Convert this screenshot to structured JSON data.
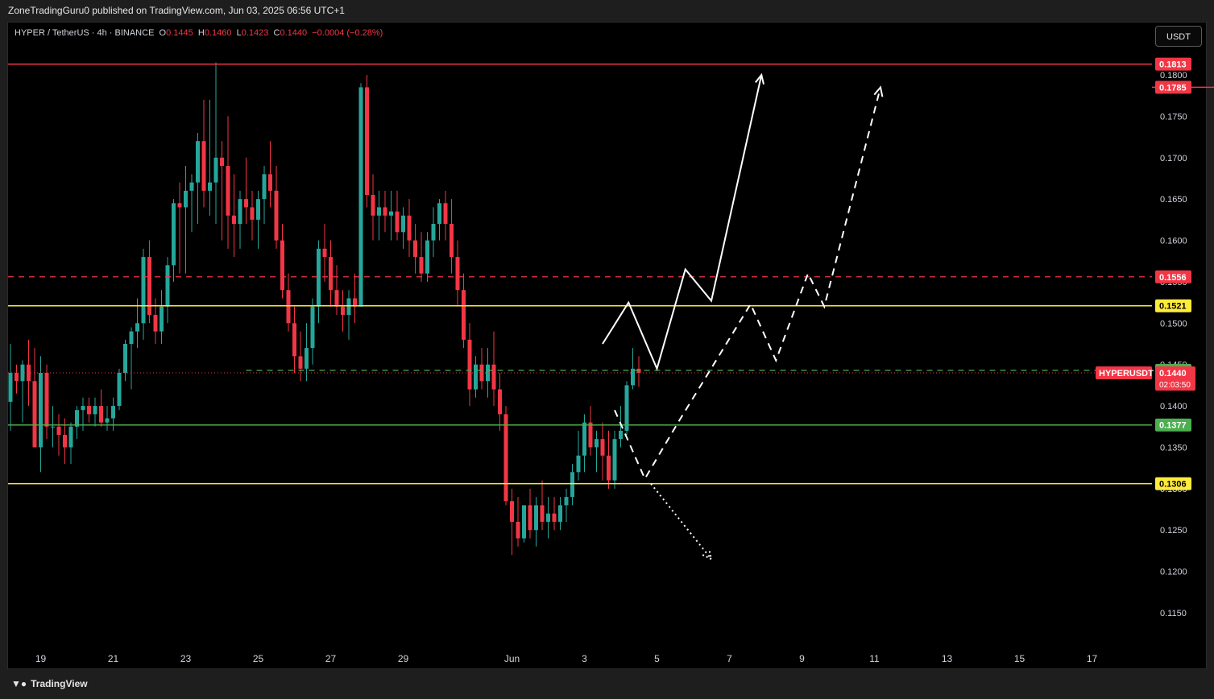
{
  "header": {
    "publish_text": "ZoneTradingGuru0 published on TradingView.com, Jun 03, 2025 06:56 UTC+1"
  },
  "legend": {
    "symbol": "HYPER / TetherUS · 4h · BINANCE",
    "o_label": "O",
    "o_value": "0.1445",
    "h_label": "H",
    "h_value": "0.1460",
    "l_label": "L",
    "l_value": "0.1423",
    "c_label": "C",
    "c_value": "0.1440",
    "change": "−0.0004 (−0.28%)"
  },
  "currency_button": "USDT",
  "footer": {
    "brand": "TradingView"
  },
  "colors": {
    "up": "#26a69a",
    "down": "#f23645",
    "yellow": "#ffeb3b",
    "green_line": "#4caf50",
    "white": "#ffffff",
    "axis_text": "#d1d4dc"
  },
  "chart_data": {
    "type": "candlestick",
    "symbol": "HYPERUSDT",
    "timeframe": "4h",
    "ylim": [
      0.1115,
      0.1855
    ],
    "y_ticks": [
      0.115,
      0.12,
      0.125,
      0.13,
      0.135,
      0.14,
      0.145,
      0.15,
      0.155,
      0.16,
      0.165,
      0.17,
      0.175,
      0.18
    ],
    "y_tick_labels": [
      "0.1150",
      "0.1200",
      "0.1250",
      "0.1300",
      "0.1350",
      "0.1400",
      "0.1450",
      "0.1500",
      "0.1550",
      "0.1600",
      "0.1650",
      "0.1700",
      "0.1750",
      "0.1800"
    ],
    "x_tick_labels": [
      "19",
      "21",
      "23",
      "25",
      "27",
      "29",
      "Jun",
      "3",
      "5",
      "7",
      "9",
      "11",
      "13",
      "15",
      "17"
    ],
    "x_tick_bar_index": [
      5,
      17,
      29,
      41,
      53,
      65,
      83,
      95,
      107,
      119,
      131,
      143,
      155,
      167,
      179
    ],
    "candles": [
      {
        "o": 0.1405,
        "h": 0.1475,
        "l": 0.137,
        "c": 0.144
      },
      {
        "o": 0.144,
        "h": 0.145,
        "l": 0.1415,
        "c": 0.143
      },
      {
        "o": 0.143,
        "h": 0.1455,
        "l": 0.138,
        "c": 0.145
      },
      {
        "o": 0.145,
        "h": 0.148,
        "l": 0.14,
        "c": 0.143
      },
      {
        "o": 0.143,
        "h": 0.147,
        "l": 0.135,
        "c": 0.135
      },
      {
        "o": 0.135,
        "h": 0.146,
        "l": 0.132,
        "c": 0.144
      },
      {
        "o": 0.144,
        "h": 0.145,
        "l": 0.136,
        "c": 0.1375
      },
      {
        "o": 0.1375,
        "h": 0.14,
        "l": 0.135,
        "c": 0.1375
      },
      {
        "o": 0.1375,
        "h": 0.139,
        "l": 0.134,
        "c": 0.1365
      },
      {
        "o": 0.1365,
        "h": 0.1385,
        "l": 0.133,
        "c": 0.135
      },
      {
        "o": 0.135,
        "h": 0.138,
        "l": 0.133,
        "c": 0.1375
      },
      {
        "o": 0.1375,
        "h": 0.14,
        "l": 0.136,
        "c": 0.1395
      },
      {
        "o": 0.1395,
        "h": 0.141,
        "l": 0.137,
        "c": 0.14
      },
      {
        "o": 0.14,
        "h": 0.141,
        "l": 0.138,
        "c": 0.139
      },
      {
        "o": 0.139,
        "h": 0.141,
        "l": 0.1375,
        "c": 0.14
      },
      {
        "o": 0.14,
        "h": 0.142,
        "l": 0.1375,
        "c": 0.138
      },
      {
        "o": 0.138,
        "h": 0.14,
        "l": 0.137,
        "c": 0.1385
      },
      {
        "o": 0.1385,
        "h": 0.141,
        "l": 0.137,
        "c": 0.14
      },
      {
        "o": 0.14,
        "h": 0.1445,
        "l": 0.1395,
        "c": 0.144
      },
      {
        "o": 0.144,
        "h": 0.148,
        "l": 0.143,
        "c": 0.1475
      },
      {
        "o": 0.1475,
        "h": 0.1495,
        "l": 0.142,
        "c": 0.149
      },
      {
        "o": 0.149,
        "h": 0.153,
        "l": 0.147,
        "c": 0.15
      },
      {
        "o": 0.15,
        "h": 0.159,
        "l": 0.148,
        "c": 0.158
      },
      {
        "o": 0.158,
        "h": 0.16,
        "l": 0.15,
        "c": 0.151
      },
      {
        "o": 0.151,
        "h": 0.153,
        "l": 0.1475,
        "c": 0.149
      },
      {
        "o": 0.149,
        "h": 0.154,
        "l": 0.1475,
        "c": 0.152
      },
      {
        "o": 0.152,
        "h": 0.158,
        "l": 0.15,
        "c": 0.157
      },
      {
        "o": 0.157,
        "h": 0.165,
        "l": 0.155,
        "c": 0.1645
      },
      {
        "o": 0.1645,
        "h": 0.167,
        "l": 0.156,
        "c": 0.164
      },
      {
        "o": 0.164,
        "h": 0.169,
        "l": 0.156,
        "c": 0.166
      },
      {
        "o": 0.166,
        "h": 0.168,
        "l": 0.161,
        "c": 0.167
      },
      {
        "o": 0.167,
        "h": 0.173,
        "l": 0.162,
        "c": 0.172
      },
      {
        "o": 0.172,
        "h": 0.177,
        "l": 0.164,
        "c": 0.166
      },
      {
        "o": 0.166,
        "h": 0.177,
        "l": 0.163,
        "c": 0.167
      },
      {
        "o": 0.167,
        "h": 0.1815,
        "l": 0.162,
        "c": 0.17
      },
      {
        "o": 0.17,
        "h": 0.172,
        "l": 0.16,
        "c": 0.169
      },
      {
        "o": 0.169,
        "h": 0.175,
        "l": 0.159,
        "c": 0.163
      },
      {
        "o": 0.163,
        "h": 0.168,
        "l": 0.158,
        "c": 0.162
      },
      {
        "o": 0.162,
        "h": 0.166,
        "l": 0.159,
        "c": 0.165
      },
      {
        "o": 0.165,
        "h": 0.17,
        "l": 0.162,
        "c": 0.164
      },
      {
        "o": 0.164,
        "h": 0.166,
        "l": 0.16,
        "c": 0.1625
      },
      {
        "o": 0.1625,
        "h": 0.166,
        "l": 0.159,
        "c": 0.165
      },
      {
        "o": 0.165,
        "h": 0.169,
        "l": 0.162,
        "c": 0.168
      },
      {
        "o": 0.168,
        "h": 0.172,
        "l": 0.164,
        "c": 0.166
      },
      {
        "o": 0.166,
        "h": 0.169,
        "l": 0.159,
        "c": 0.16
      },
      {
        "o": 0.16,
        "h": 0.162,
        "l": 0.153,
        "c": 0.154
      },
      {
        "o": 0.154,
        "h": 0.156,
        "l": 0.149,
        "c": 0.15
      },
      {
        "o": 0.15,
        "h": 0.152,
        "l": 0.144,
        "c": 0.146
      },
      {
        "o": 0.146,
        "h": 0.149,
        "l": 0.143,
        "c": 0.1445
      },
      {
        "o": 0.1445,
        "h": 0.15,
        "l": 0.143,
        "c": 0.147
      },
      {
        "o": 0.147,
        "h": 0.153,
        "l": 0.145,
        "c": 0.152
      },
      {
        "o": 0.152,
        "h": 0.16,
        "l": 0.15,
        "c": 0.159
      },
      {
        "o": 0.159,
        "h": 0.162,
        "l": 0.155,
        "c": 0.158
      },
      {
        "o": 0.158,
        "h": 0.16,
        "l": 0.152,
        "c": 0.154
      },
      {
        "o": 0.154,
        "h": 0.157,
        "l": 0.151,
        "c": 0.152
      },
      {
        "o": 0.152,
        "h": 0.154,
        "l": 0.149,
        "c": 0.151
      },
      {
        "o": 0.151,
        "h": 0.154,
        "l": 0.148,
        "c": 0.153
      },
      {
        "o": 0.153,
        "h": 0.156,
        "l": 0.15,
        "c": 0.152
      },
      {
        "o": 0.152,
        "h": 0.179,
        "l": 0.152,
        "c": 0.1785
      },
      {
        "o": 0.1785,
        "h": 0.18,
        "l": 0.164,
        "c": 0.1655
      },
      {
        "o": 0.1655,
        "h": 0.168,
        "l": 0.16,
        "c": 0.163
      },
      {
        "o": 0.163,
        "h": 0.166,
        "l": 0.16,
        "c": 0.164
      },
      {
        "o": 0.164,
        "h": 0.166,
        "l": 0.161,
        "c": 0.163
      },
      {
        "o": 0.163,
        "h": 0.166,
        "l": 0.16,
        "c": 0.1635
      },
      {
        "o": 0.1635,
        "h": 0.166,
        "l": 0.16,
        "c": 0.161
      },
      {
        "o": 0.161,
        "h": 0.164,
        "l": 0.159,
        "c": 0.163
      },
      {
        "o": 0.163,
        "h": 0.165,
        "l": 0.158,
        "c": 0.16
      },
      {
        "o": 0.16,
        "h": 0.162,
        "l": 0.156,
        "c": 0.158
      },
      {
        "o": 0.158,
        "h": 0.161,
        "l": 0.155,
        "c": 0.156
      },
      {
        "o": 0.156,
        "h": 0.161,
        "l": 0.155,
        "c": 0.16
      },
      {
        "o": 0.16,
        "h": 0.164,
        "l": 0.158,
        "c": 0.162
      },
      {
        "o": 0.162,
        "h": 0.165,
        "l": 0.16,
        "c": 0.1645
      },
      {
        "o": 0.1645,
        "h": 0.166,
        "l": 0.16,
        "c": 0.162
      },
      {
        "o": 0.162,
        "h": 0.165,
        "l": 0.156,
        "c": 0.158
      },
      {
        "o": 0.158,
        "h": 0.16,
        "l": 0.152,
        "c": 0.154
      },
      {
        "o": 0.154,
        "h": 0.156,
        "l": 0.147,
        "c": 0.148
      },
      {
        "o": 0.148,
        "h": 0.15,
        "l": 0.14,
        "c": 0.142
      },
      {
        "o": 0.142,
        "h": 0.146,
        "l": 0.141,
        "c": 0.145
      },
      {
        "o": 0.145,
        "h": 0.147,
        "l": 0.142,
        "c": 0.143
      },
      {
        "o": 0.143,
        "h": 0.147,
        "l": 0.141,
        "c": 0.145
      },
      {
        "o": 0.145,
        "h": 0.149,
        "l": 0.14,
        "c": 0.142
      },
      {
        "o": 0.142,
        "h": 0.144,
        "l": 0.137,
        "c": 0.139
      },
      {
        "o": 0.139,
        "h": 0.14,
        "l": 0.128,
        "c": 0.1285
      },
      {
        "o": 0.1285,
        "h": 0.13,
        "l": 0.122,
        "c": 0.126
      },
      {
        "o": 0.126,
        "h": 0.129,
        "l": 0.123,
        "c": 0.124
      },
      {
        "o": 0.124,
        "h": 0.128,
        "l": 0.1235,
        "c": 0.128
      },
      {
        "o": 0.128,
        "h": 0.13,
        "l": 0.124,
        "c": 0.125
      },
      {
        "o": 0.125,
        "h": 0.129,
        "l": 0.123,
        "c": 0.128
      },
      {
        "o": 0.128,
        "h": 0.131,
        "l": 0.125,
        "c": 0.126
      },
      {
        "o": 0.126,
        "h": 0.129,
        "l": 0.124,
        "c": 0.127
      },
      {
        "o": 0.127,
        "h": 0.129,
        "l": 0.125,
        "c": 0.126
      },
      {
        "o": 0.126,
        "h": 0.129,
        "l": 0.125,
        "c": 0.128
      },
      {
        "o": 0.128,
        "h": 0.13,
        "l": 0.126,
        "c": 0.129
      },
      {
        "o": 0.129,
        "h": 0.133,
        "l": 0.128,
        "c": 0.132
      },
      {
        "o": 0.132,
        "h": 0.137,
        "l": 0.131,
        "c": 0.134
      },
      {
        "o": 0.134,
        "h": 0.139,
        "l": 0.132,
        "c": 0.138
      },
      {
        "o": 0.138,
        "h": 0.14,
        "l": 0.134,
        "c": 0.135
      },
      {
        "o": 0.135,
        "h": 0.137,
        "l": 0.132,
        "c": 0.136
      },
      {
        "o": 0.136,
        "h": 0.138,
        "l": 0.131,
        "c": 0.134
      },
      {
        "o": 0.134,
        "h": 0.137,
        "l": 0.13,
        "c": 0.131
      },
      {
        "o": 0.131,
        "h": 0.137,
        "l": 0.13,
        "c": 0.136
      },
      {
        "o": 0.136,
        "h": 0.14,
        "l": 0.135,
        "c": 0.137
      },
      {
        "o": 0.137,
        "h": 0.143,
        "l": 0.1365,
        "c": 0.1425
      },
      {
        "o": 0.1425,
        "h": 0.147,
        "l": 0.142,
        "c": 0.1445
      },
      {
        "o": 0.1445,
        "h": 0.146,
        "l": 0.1423,
        "c": 0.144
      }
    ],
    "horizontal_levels": [
      {
        "price": 0.1813,
        "label": "0.1813",
        "style": "solid",
        "color": "#f23645",
        "bar_start": 0
      },
      {
        "price": 0.1785,
        "label": "0.1785",
        "style": "solid",
        "color": "#f23645",
        "bar_start": 43
      },
      {
        "price": 0.1556,
        "label": "0.1556",
        "style": "dashed",
        "color": "#f23645",
        "bar_start": 0
      },
      {
        "price": 0.1521,
        "label": "0.1521",
        "style": "solid",
        "color": "#ffeb3b",
        "bar_start": 0
      },
      {
        "price": 0.1443,
        "label": "0.1443",
        "style": "dashed",
        "color": "#4caf50",
        "bar_start": 6
      },
      {
        "price": 0.1377,
        "label": "0.1377",
        "style": "solid",
        "color": "#4caf50",
        "bar_start": 0
      },
      {
        "price": 0.1306,
        "label": "0.1306",
        "style": "solid",
        "color": "#ffeb3b",
        "bar_start": 0
      }
    ],
    "current_price": {
      "price": 0.144,
      "label": "0.1440",
      "countdown": "02:03:50",
      "symbol_tag": "HYPERUSDT"
    },
    "projections": [
      {
        "style": "solid",
        "points": [
          [
            98.0,
            0.1475
          ],
          [
            102.3,
            0.1525
          ],
          [
            107.0,
            0.1445
          ],
          [
            111.7,
            0.1565
          ],
          [
            116.0,
            0.1527
          ],
          [
            124.3,
            0.18
          ]
        ]
      },
      {
        "style": "dashed",
        "points": [
          [
            100.0,
            0.1395
          ],
          [
            105.0,
            0.1312
          ],
          [
            110.5,
            0.138
          ],
          [
            122.5,
            0.1523
          ],
          [
            126.7,
            0.1455
          ],
          [
            132.0,
            0.156
          ],
          [
            134.7,
            0.152
          ],
          [
            144.0,
            0.1785
          ]
        ]
      },
      {
        "style": "dotted",
        "points": [
          [
            106.0,
            0.1306
          ],
          [
            116.0,
            0.1215
          ]
        ]
      }
    ]
  }
}
